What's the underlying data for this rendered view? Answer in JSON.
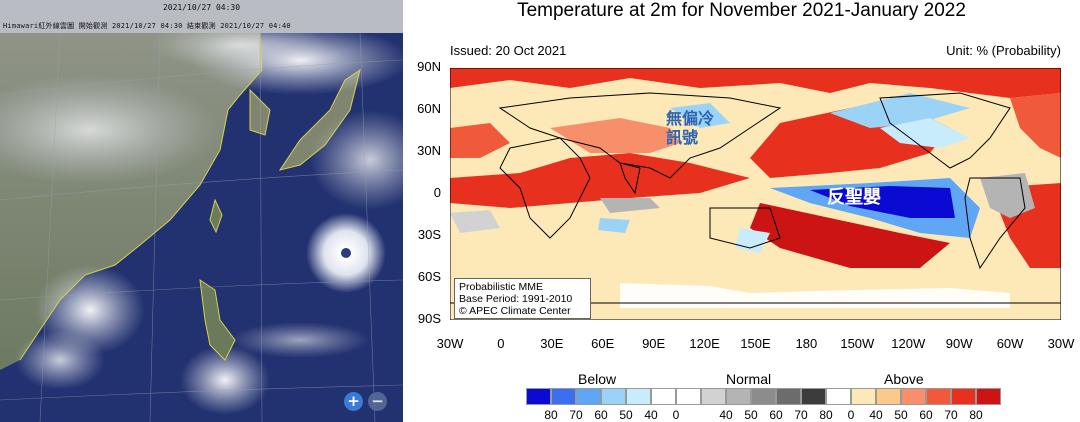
{
  "satellite": {
    "timestamp": "2021/10/27 04:30",
    "header_line": "Himawari紅外線雲圖    開始觀測 2021/10/27 04:30    結束觀測 2021/10/27 04:40",
    "zoom_in": "+",
    "zoom_out": "−"
  },
  "forecast": {
    "title": "Temperature at 2m for November 2021-January 2022",
    "issued": "Issued: 20 Oct 2021",
    "unit": "Unit: % (Probability)",
    "lat_labels": [
      "90N",
      "60N",
      "30N",
      "0",
      "30S",
      "60S",
      "90S"
    ],
    "lon_labels": [
      "30W",
      "0",
      "30E",
      "60E",
      "90E",
      "120E",
      "150E",
      "180",
      "150W",
      "120W",
      "90W",
      "60W",
      "30W"
    ],
    "note_lines": [
      "Probabilistic MME",
      "Base Period: 1991-2010",
      "© APEC Climate Center"
    ],
    "annotation_neutral": "無偏冷\n訊號",
    "annotation_lanina": "反聖嬰",
    "legend": {
      "below": "Below",
      "normal": "Normal",
      "above": "Above",
      "colors": [
        "#0a0ad2",
        "#3a6ff0",
        "#5fa6f5",
        "#9bd3f7",
        "#c8ecfb",
        "#ffffff",
        "#ffffff",
        "#d2d2d2",
        "#b4b4b4",
        "#8c8c8c",
        "#6c6c6c",
        "#3c3c3c",
        "#ffffff",
        "#fde9b8",
        "#fbc98a",
        "#f7906a",
        "#f05a3a",
        "#e8301e",
        "#cc1414"
      ],
      "numbers": [
        "80",
        "70",
        "60",
        "50",
        "40",
        "0",
        "40",
        "50",
        "60",
        "70",
        "80",
        "0",
        "40",
        "50",
        "60",
        "70",
        "80"
      ]
    }
  }
}
